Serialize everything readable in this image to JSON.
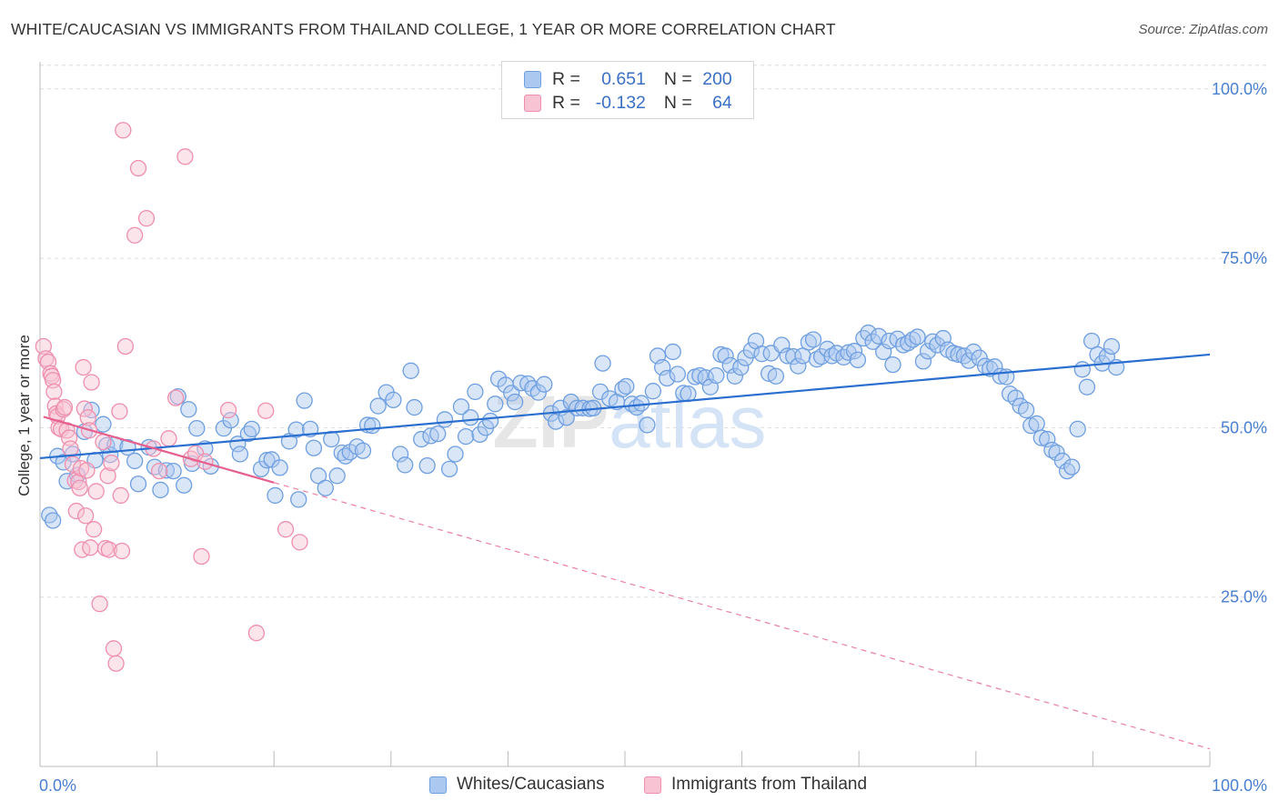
{
  "header": {
    "title": "WHITE/CAUCASIAN VS IMMIGRANTS FROM THAILAND COLLEGE, 1 YEAR OR MORE CORRELATION CHART",
    "source": "Source: ZipAtlas.com"
  },
  "legend_top": {
    "rows": [
      {
        "r_label": "R =",
        "r_value": "0.651",
        "n_label": "N =",
        "n_value": "200",
        "color": "#aac8f0",
        "border": "#6f9fe0"
      },
      {
        "r_label": "R =",
        "r_value": "-0.132",
        "n_label": "N =",
        "n_value": "64",
        "color": "#f8c3d3",
        "border": "#ee8fae"
      }
    ]
  },
  "legend_bottom": {
    "items": [
      {
        "label": "Whites/Caucasians",
        "color": "#aac8f0",
        "border": "#6f9fe0"
      },
      {
        "label": "Immigrants from Thailand",
        "color": "#f8c3d3",
        "border": "#ee8fae"
      }
    ]
  },
  "chart_data": {
    "type": "scatter",
    "ylabel": "College, 1 year or more",
    "xlim": [
      0,
      100
    ],
    "ylim": [
      0,
      104
    ],
    "x_tick_labels": [
      "0.0%",
      "100.0%"
    ],
    "y_tick_labels": [
      "25.0%",
      "50.0%",
      "75.0%",
      "100.0%"
    ],
    "y_tick_values": [
      25,
      50,
      75,
      100
    ],
    "grid": true,
    "watermark": "ZIPatlas",
    "series": [
      {
        "name": "Whites/Caucasians",
        "color": "#aac8f0",
        "stroke": "#6f9fe0",
        "line_color": "#2a6fcf",
        "trend": [
          [
            0,
            45.5
          ],
          [
            100,
            60.8
          ]
        ],
        "points": [
          [
            0.8,
            37.1
          ],
          [
            1.1,
            36.3
          ],
          [
            1.5,
            45.8
          ],
          [
            2.0,
            44.9
          ],
          [
            2.3,
            42.1
          ],
          [
            2.8,
            46.1
          ],
          [
            3.2,
            43.0
          ],
          [
            3.8,
            49.4
          ],
          [
            4.4,
            52.6
          ],
          [
            4.7,
            45.2
          ],
          [
            5.4,
            50.5
          ],
          [
            5.7,
            47.4
          ],
          [
            6.0,
            46.0
          ],
          [
            6.4,
            47.5
          ],
          [
            7.5,
            47.1
          ],
          [
            8.1,
            45.1
          ],
          [
            8.4,
            41.7
          ],
          [
            9.3,
            47.1
          ],
          [
            9.8,
            44.2
          ],
          [
            10.3,
            40.8
          ],
          [
            10.8,
            43.7
          ],
          [
            11.4,
            43.6
          ],
          [
            11.8,
            54.6
          ],
          [
            12.3,
            41.5
          ],
          [
            12.7,
            52.7
          ],
          [
            13.0,
            44.7
          ],
          [
            13.4,
            49.9
          ],
          [
            14.1,
            46.9
          ],
          [
            14.6,
            44.3
          ],
          [
            15.7,
            49.9
          ],
          [
            16.3,
            51.1
          ],
          [
            16.9,
            47.6
          ],
          [
            17.1,
            46.1
          ],
          [
            17.8,
            49.1
          ],
          [
            18.1,
            49.8
          ],
          [
            18.9,
            43.9
          ],
          [
            19.4,
            45.2
          ],
          [
            19.8,
            45.3
          ],
          [
            20.1,
            40.0
          ],
          [
            20.5,
            44.1
          ],
          [
            21.3,
            48.0
          ],
          [
            21.9,
            49.7
          ],
          [
            22.1,
            39.4
          ],
          [
            22.6,
            54.0
          ],
          [
            23.1,
            49.8
          ],
          [
            23.4,
            47.0
          ],
          [
            23.8,
            42.9
          ],
          [
            24.4,
            41.1
          ],
          [
            24.9,
            48.3
          ],
          [
            25.4,
            42.9
          ],
          [
            25.8,
            46.3
          ],
          [
            26.1,
            45.8
          ],
          [
            26.5,
            46.4
          ],
          [
            27.1,
            47.2
          ],
          [
            27.6,
            46.6
          ],
          [
            28.0,
            50.4
          ],
          [
            28.4,
            50.3
          ],
          [
            28.9,
            53.2
          ],
          [
            29.6,
            55.2
          ],
          [
            30.2,
            54.1
          ],
          [
            30.8,
            46.1
          ],
          [
            31.2,
            44.5
          ],
          [
            31.7,
            58.4
          ],
          [
            32.0,
            53.0
          ],
          [
            32.6,
            48.3
          ],
          [
            33.1,
            44.4
          ],
          [
            33.4,
            48.8
          ],
          [
            34.0,
            49.1
          ],
          [
            34.6,
            51.2
          ],
          [
            35.0,
            43.9
          ],
          [
            35.5,
            46.1
          ],
          [
            36.0,
            53.1
          ],
          [
            36.4,
            48.7
          ],
          [
            36.8,
            51.5
          ],
          [
            37.2,
            55.3
          ],
          [
            37.6,
            49.0
          ],
          [
            38.1,
            50.0
          ],
          [
            38.5,
            51.0
          ],
          [
            38.9,
            53.5
          ],
          [
            39.2,
            57.2
          ],
          [
            39.8,
            56.3
          ],
          [
            40.3,
            55.1
          ],
          [
            40.6,
            53.8
          ],
          [
            41.1,
            56.6
          ],
          [
            41.7,
            56.5
          ],
          [
            42.1,
            55.8
          ],
          [
            42.6,
            55.2
          ],
          [
            43.1,
            56.4
          ],
          [
            43.7,
            52.1
          ],
          [
            44.1,
            50.9
          ],
          [
            44.5,
            52.9
          ],
          [
            45.0,
            51.5
          ],
          [
            45.4,
            53.8
          ],
          [
            45.9,
            52.9
          ],
          [
            46.4,
            52.9
          ],
          [
            47.0,
            52.8
          ],
          [
            47.3,
            52.9
          ],
          [
            47.9,
            55.3
          ],
          [
            48.1,
            59.5
          ],
          [
            48.7,
            54.3
          ],
          [
            49.3,
            53.8
          ],
          [
            49.8,
            55.7
          ],
          [
            50.1,
            56.1
          ],
          [
            50.6,
            53.5
          ],
          [
            51.0,
            53.0
          ],
          [
            51.4,
            53.6
          ],
          [
            51.9,
            50.4
          ],
          [
            52.4,
            55.4
          ],
          [
            52.8,
            60.6
          ],
          [
            53.2,
            58.9
          ],
          [
            53.6,
            57.3
          ],
          [
            54.1,
            61.2
          ],
          [
            54.5,
            57.9
          ],
          [
            55.0,
            55.1
          ],
          [
            55.4,
            55.0
          ],
          [
            56.0,
            57.5
          ],
          [
            56.4,
            57.7
          ],
          [
            56.9,
            57.4
          ],
          [
            57.3,
            56.0
          ],
          [
            57.8,
            57.7
          ],
          [
            58.2,
            60.8
          ],
          [
            58.6,
            60.6
          ],
          [
            59.0,
            59.2
          ],
          [
            59.4,
            57.6
          ],
          [
            59.9,
            58.9
          ],
          [
            60.3,
            60.3
          ],
          [
            60.8,
            61.4
          ],
          [
            61.2,
            62.8
          ],
          [
            61.7,
            60.9
          ],
          [
            62.3,
            58.0
          ],
          [
            62.5,
            61.0
          ],
          [
            62.9,
            57.6
          ],
          [
            63.4,
            62.2
          ],
          [
            63.9,
            60.6
          ],
          [
            64.4,
            60.5
          ],
          [
            64.8,
            59.1
          ],
          [
            65.2,
            60.6
          ],
          [
            65.7,
            62.6
          ],
          [
            66.1,
            63.0
          ],
          [
            66.4,
            60.1
          ],
          [
            66.8,
            60.5
          ],
          [
            67.3,
            61.6
          ],
          [
            67.7,
            60.6
          ],
          [
            68.1,
            61.0
          ],
          [
            68.7,
            60.4
          ],
          [
            69.1,
            61.1
          ],
          [
            69.6,
            61.3
          ],
          [
            69.9,
            60.0
          ],
          [
            70.4,
            63.2
          ],
          [
            70.8,
            64.0
          ],
          [
            71.2,
            62.7
          ],
          [
            71.7,
            63.5
          ],
          [
            72.1,
            61.2
          ],
          [
            72.6,
            62.8
          ],
          [
            72.9,
            59.3
          ],
          [
            73.3,
            63.1
          ],
          [
            73.8,
            62.2
          ],
          [
            74.2,
            62.5
          ],
          [
            74.6,
            63.0
          ],
          [
            75.0,
            63.4
          ],
          [
            75.5,
            59.8
          ],
          [
            75.9,
            61.3
          ],
          [
            76.3,
            62.7
          ],
          [
            76.7,
            62.2
          ],
          [
            77.2,
            63.2
          ],
          [
            77.6,
            61.5
          ],
          [
            78.1,
            61.0
          ],
          [
            78.5,
            60.8
          ],
          [
            79.0,
            60.6
          ],
          [
            79.4,
            59.9
          ],
          [
            79.8,
            61.2
          ],
          [
            80.3,
            60.3
          ],
          [
            80.8,
            59.1
          ],
          [
            81.2,
            58.7
          ],
          [
            81.6,
            59.0
          ],
          [
            82.1,
            57.6
          ],
          [
            82.6,
            57.5
          ],
          [
            82.9,
            55.0
          ],
          [
            83.4,
            54.4
          ],
          [
            83.8,
            53.2
          ],
          [
            84.3,
            52.6
          ],
          [
            84.7,
            50.3
          ],
          [
            85.2,
            50.6
          ],
          [
            85.6,
            48.5
          ],
          [
            86.1,
            48.3
          ],
          [
            86.5,
            46.7
          ],
          [
            86.9,
            46.3
          ],
          [
            87.4,
            45.1
          ],
          [
            87.8,
            43.6
          ],
          [
            88.2,
            44.2
          ],
          [
            88.7,
            49.8
          ],
          [
            89.1,
            58.6
          ],
          [
            89.5,
            56.0
          ],
          [
            89.9,
            62.8
          ],
          [
            90.4,
            60.8
          ],
          [
            90.8,
            59.5
          ],
          [
            91.2,
            60.5
          ],
          [
            91.6,
            62.0
          ],
          [
            92.0,
            58.9
          ]
        ]
      },
      {
        "name": "Immigrants from Thailand",
        "color": "#f8c3d3",
        "stroke": "#ee8fae",
        "line_color": "#e5608f",
        "trend": [
          [
            0.3,
            51.6
          ],
          [
            20,
            41.9
          ]
        ],
        "trend_dashed": [
          [
            20,
            41.9
          ],
          [
            100,
            2.6
          ]
        ],
        "points": [
          [
            0.3,
            62.0
          ],
          [
            0.5,
            60.2
          ],
          [
            0.7,
            59.7
          ],
          [
            0.9,
            58.0
          ],
          [
            1.0,
            57.6
          ],
          [
            1.1,
            57.0
          ],
          [
            1.2,
            55.3
          ],
          [
            1.3,
            53.2
          ],
          [
            1.4,
            52.1
          ],
          [
            1.5,
            51.7
          ],
          [
            1.6,
            50.0
          ],
          [
            1.8,
            49.8
          ],
          [
            2.0,
            52.7
          ],
          [
            2.1,
            53.0
          ],
          [
            2.3,
            49.6
          ],
          [
            2.5,
            48.5
          ],
          [
            2.6,
            46.9
          ],
          [
            2.8,
            44.6
          ],
          [
            3.0,
            42.2
          ],
          [
            3.1,
            37.7
          ],
          [
            3.3,
            42.0
          ],
          [
            3.4,
            41.1
          ],
          [
            3.5,
            44.0
          ],
          [
            3.6,
            32.0
          ],
          [
            3.7,
            58.9
          ],
          [
            3.8,
            52.8
          ],
          [
            3.9,
            37.0
          ],
          [
            4.0,
            43.7
          ],
          [
            4.1,
            51.5
          ],
          [
            4.2,
            49.6
          ],
          [
            4.3,
            32.3
          ],
          [
            4.4,
            56.7
          ],
          [
            4.6,
            35.0
          ],
          [
            4.8,
            40.6
          ],
          [
            5.1,
            24.0
          ],
          [
            5.4,
            47.9
          ],
          [
            5.6,
            32.2
          ],
          [
            5.8,
            42.9
          ],
          [
            5.9,
            32.0
          ],
          [
            6.1,
            44.8
          ],
          [
            6.3,
            17.4
          ],
          [
            6.5,
            15.2
          ],
          [
            6.8,
            52.4
          ],
          [
            6.9,
            40.0
          ],
          [
            7.0,
            31.8
          ],
          [
            7.1,
            93.9
          ],
          [
            7.3,
            62.0
          ],
          [
            8.1,
            78.4
          ],
          [
            8.4,
            88.3
          ],
          [
            9.1,
            80.9
          ],
          [
            9.7,
            46.9
          ],
          [
            10.2,
            43.6
          ],
          [
            11.0,
            48.4
          ],
          [
            11.6,
            54.4
          ],
          [
            12.4,
            90.0
          ],
          [
            12.9,
            45.4
          ],
          [
            13.3,
            46.2
          ],
          [
            13.8,
            31.0
          ],
          [
            14.1,
            45.0
          ],
          [
            16.1,
            52.6
          ],
          [
            18.5,
            19.7
          ],
          [
            19.3,
            52.5
          ],
          [
            21.0,
            35.0
          ],
          [
            22.2,
            33.1
          ]
        ]
      }
    ]
  }
}
